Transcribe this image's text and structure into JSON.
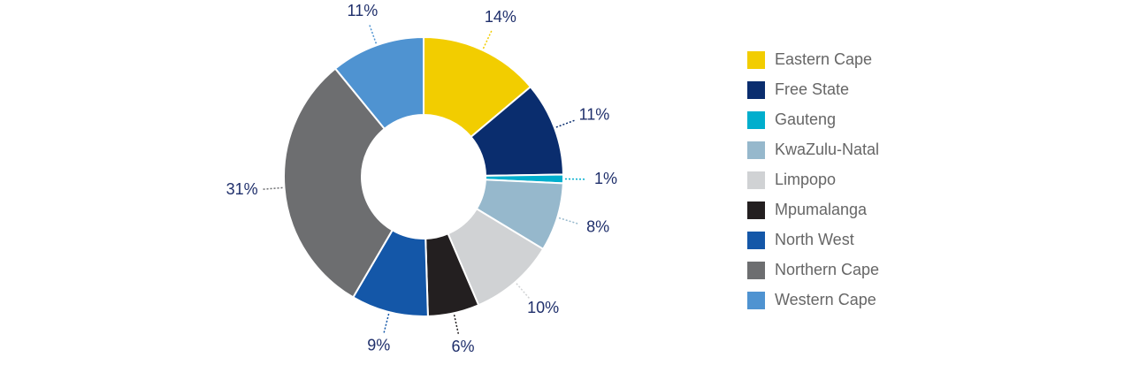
{
  "chart_data": {
    "type": "pie",
    "donut": true,
    "legend": "right",
    "categories": [
      "Eastern Cape",
      "Free State",
      "Gauteng",
      "KwaZulu-Natal",
      "Limpopo",
      "Mpumalanga",
      "North West",
      "Northern Cape",
      "Western Cape"
    ],
    "values": [
      14,
      11,
      1,
      8,
      10,
      6,
      9,
      31,
      11
    ],
    "value_labels": [
      "14%",
      "11%",
      "1%",
      "8%",
      "10%",
      "6%",
      "9%",
      "31%",
      "11%"
    ],
    "colors": [
      "#f2cd00",
      "#0a2d6e",
      "#00aecd",
      "#96b8cc",
      "#d0d2d4",
      "#231f20",
      "#1457a8",
      "#6d6e70",
      "#4f93d1"
    ]
  }
}
